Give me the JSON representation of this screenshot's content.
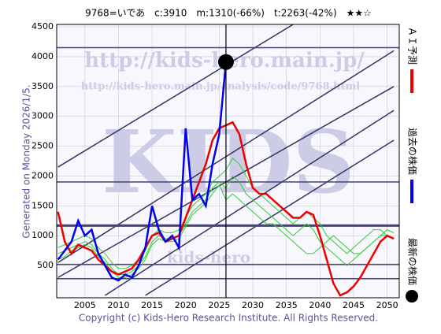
{
  "chart_data": {
    "type": "line",
    "title": "9768=いであ　c:3910　m:1310(-66%)　t:2263(-42%)　★★☆",
    "side_note": "Generated on Monday 2026/1/5.",
    "footer": "Copyright (c) Kids-Hero Research Institute. All Rights Reserved.",
    "watermarks": [
      "http://kids-hero.main.jp/",
      "http://kids-hero.main.jp/analysis/code/9768.html",
      "KIDS",
      "kids-hero"
    ],
    "latest_label": "最新の株価",
    "x": [
      2001,
      2002,
      2003,
      2004,
      2005,
      2006,
      2007,
      2008,
      2009,
      2010,
      2011,
      2012,
      2013,
      2014,
      2015,
      2016,
      2017,
      2018,
      2019,
      2020,
      2021,
      2022,
      2023,
      2024,
      2025,
      2026,
      2027,
      2028,
      2029,
      2030,
      2031,
      2032,
      2033,
      2034,
      2035,
      2036,
      2037,
      2038,
      2039,
      2040,
      2041,
      2042,
      2043,
      2044,
      2045,
      2046,
      2047,
      2048,
      2049,
      2050,
      2051
    ],
    "series": [
      {
        "color": "#33cc33",
        "values": [
          700,
          750,
          800,
          850,
          900,
          850,
          700,
          600,
          450,
          350,
          350,
          400,
          500,
          650,
          900,
          1000,
          950,
          950,
          1000,
          1200,
          1400,
          1500,
          1600,
          1800,
          1900,
          1800,
          2000,
          1900,
          1700,
          1600,
          1500,
          1400,
          1300,
          1200,
          1100,
          1000,
          1100,
          1200,
          1100,
          900,
          800,
          700,
          600,
          500,
          600,
          700,
          800,
          900,
          1000,
          1000,
          950
        ]
      },
      {
        "color": "#33cc33",
        "values": [
          600,
          650,
          750,
          800,
          850,
          800,
          650,
          550,
          400,
          300,
          300,
          350,
          450,
          600,
          850,
          950,
          900,
          900,
          950,
          1150,
          1350,
          1450,
          1550,
          1700,
          1850,
          1600,
          1700,
          1600,
          1500,
          1400,
          1300,
          1200,
          1200,
          1100,
          1000,
          900,
          800,
          700,
          700,
          800,
          900,
          1000,
          900,
          800,
          700,
          700,
          800,
          900,
          1000,
          1100,
          1050
        ]
      },
      {
        "color": "#33cc33",
        "values": [
          800,
          850,
          900,
          950,
          1000,
          950,
          800,
          700,
          550,
          450,
          450,
          500,
          600,
          750,
          1000,
          1100,
          1050,
          1050,
          1100,
          1300,
          1500,
          1600,
          1700,
          1900,
          2000,
          2100,
          2300,
          2200,
          2000,
          1800,
          1700,
          1600,
          1500,
          1400,
          1300,
          1200,
          1300,
          1400,
          1300,
          1200,
          1000,
          900,
          800,
          700,
          800,
          900,
          1000,
          1100,
          1100,
          1000,
          950
        ]
      },
      {
        "name": "ＡＩ予測",
        "color": "#ee0000",
        "values": [
          1400,
          900,
          700,
          850,
          800,
          750,
          600,
          500,
          400,
          350,
          400,
          450,
          600,
          800,
          1000,
          1050,
          900,
          950,
          1000,
          1300,
          1600,
          1900,
          2200,
          2600,
          2800,
          2850,
          2900,
          2700,
          2200,
          1800,
          1700,
          1700,
          1600,
          1500,
          1400,
          1300,
          1300,
          1400,
          1350,
          1000,
          600,
          200,
          0,
          50,
          150,
          300,
          500,
          700,
          900,
          1000,
          950
        ]
      },
      {
        "name": "過去の株価",
        "color": "#0000ee",
        "values": [
          600,
          750,
          900,
          1250,
          1000,
          1100,
          700,
          500,
          300,
          250,
          350,
          300,
          500,
          800,
          1500,
          1100,
          900,
          1000,
          800,
          2800,
          1600,
          1700,
          1500,
          2200,
          2700,
          3910,
          null,
          null,
          null,
          null,
          null,
          null,
          null,
          null,
          null,
          null,
          null,
          null,
          null,
          null,
          null,
          null,
          null,
          null,
          null,
          null,
          null,
          null,
          null,
          null,
          null
        ]
      }
    ],
    "reference_lines": [
      4150,
      1900,
      1170,
      520,
      280
    ],
    "trend_lines": [
      [
        [
          2001,
          2150
        ],
        [
          2036,
          4540
        ]
      ],
      [
        [
          2001,
          550
        ],
        [
          2051,
          4100
        ]
      ],
      [
        [
          2001,
          300
        ],
        [
          2051,
          3500
        ]
      ],
      [
        [
          2008,
          0
        ],
        [
          2051,
          3100
        ]
      ],
      [
        [
          2014,
          0
        ],
        [
          2051,
          2600
        ]
      ]
    ],
    "xlim": [
      2000.8,
      2051.8
    ],
    "ylim": [
      -40,
      4540
    ],
    "xticks": [
      2005,
      2010,
      2015,
      2020,
      2025,
      2030,
      2035,
      2040,
      2045,
      2050
    ],
    "yticks": [
      500,
      1000,
      1500,
      2000,
      2500,
      3000,
      3500,
      4000,
      4500
    ],
    "grid": true
  }
}
